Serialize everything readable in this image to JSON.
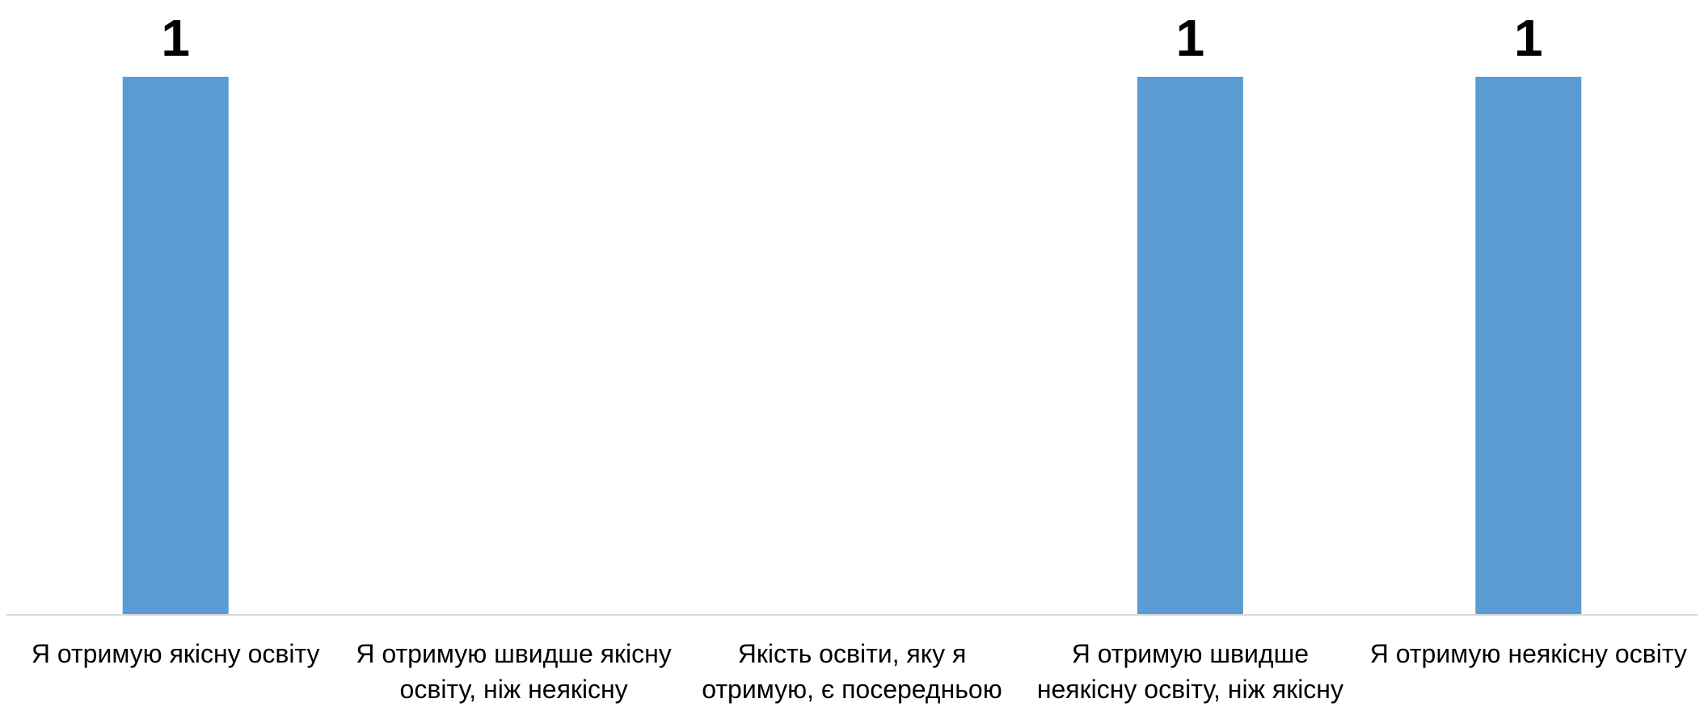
{
  "chart_data": {
    "type": "bar",
    "categories": [
      "Я отримую якісну освіту",
      "Я отримую швидше якісну освіту, ніж неякісну",
      "Якість освіти, яку я отримую, є посередньою",
      "Я отримую швидше неякісну освіту, ніж якісну",
      "Я отримую неякісну освіту"
    ],
    "values": [
      1,
      0,
      0,
      1,
      1
    ],
    "data_labels": [
      "1",
      "",
      "",
      "1",
      "1"
    ],
    "title": "",
    "xlabel": "",
    "ylabel": "",
    "ylim": [
      0,
      1
    ],
    "grid": false,
    "legend": "none",
    "bar_color": "#5B9BD5",
    "axis_color": "#D9D9D9"
  }
}
